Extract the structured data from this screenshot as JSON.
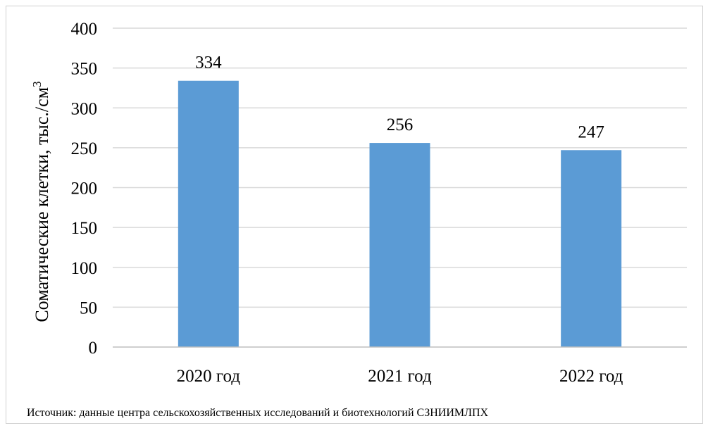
{
  "chart_data": {
    "type": "bar",
    "categories": [
      "2020 год",
      "2021 год",
      "2022 год"
    ],
    "values": [
      334,
      256,
      247
    ],
    "data_labels": [
      "334",
      "256",
      "247"
    ],
    "title": "",
    "xlabel": "",
    "ylabel": "Соматические клетки, тыс./см",
    "ylabel_superscript": "3",
    "ylim": [
      0,
      400
    ],
    "yticks": [
      0,
      50,
      100,
      150,
      200,
      250,
      300,
      350,
      400
    ],
    "grid": true,
    "legend": "none",
    "bar_color": "#5B9BD5",
    "grid_color": "#D9D9D9"
  },
  "source_note": "Источник:  данные  центра сельскохозяйственных исследований и биотехнологий СЗНИИМЛПХ"
}
